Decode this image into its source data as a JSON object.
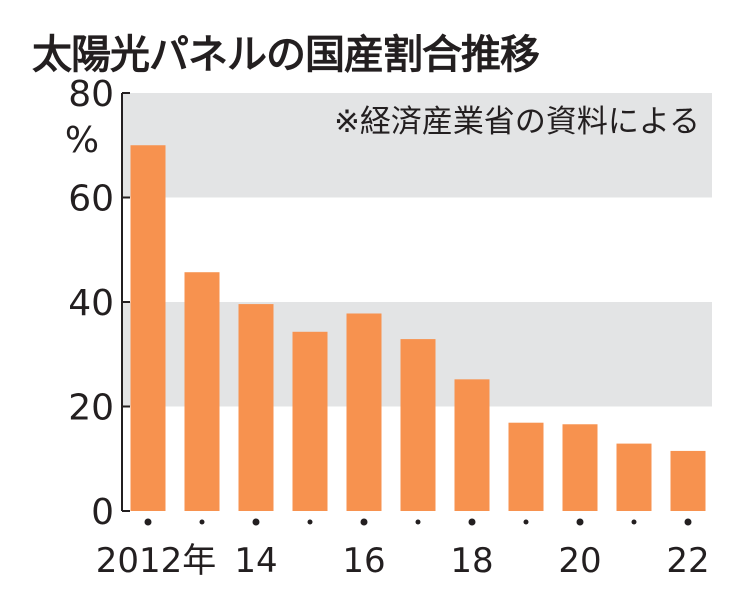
{
  "chart_data": {
    "type": "bar",
    "title": "太陽光パネルの国産割合推移",
    "note": "※経済産業省の資料による",
    "unit": "%",
    "xlabel": "",
    "ylabel": "%",
    "ylim": [
      0,
      80
    ],
    "yticks": [
      0,
      20,
      40,
      60,
      80
    ],
    "categories": [
      "2012",
      "2013",
      "2014",
      "2015",
      "2016",
      "2017",
      "2018",
      "2019",
      "2020",
      "2021",
      "2022"
    ],
    "xtick_labels": [
      "2012年",
      "",
      "14",
      "",
      "16",
      "",
      "18",
      "",
      "20",
      "",
      "22"
    ],
    "values": [
      70,
      45.7,
      39.6,
      34.3,
      37.8,
      32.9,
      25.2,
      16.9,
      16.6,
      12.9,
      11.5
    ],
    "bar_color": "#f7924f",
    "band_color": "#e3e4e5",
    "grid": "alternating bands"
  }
}
